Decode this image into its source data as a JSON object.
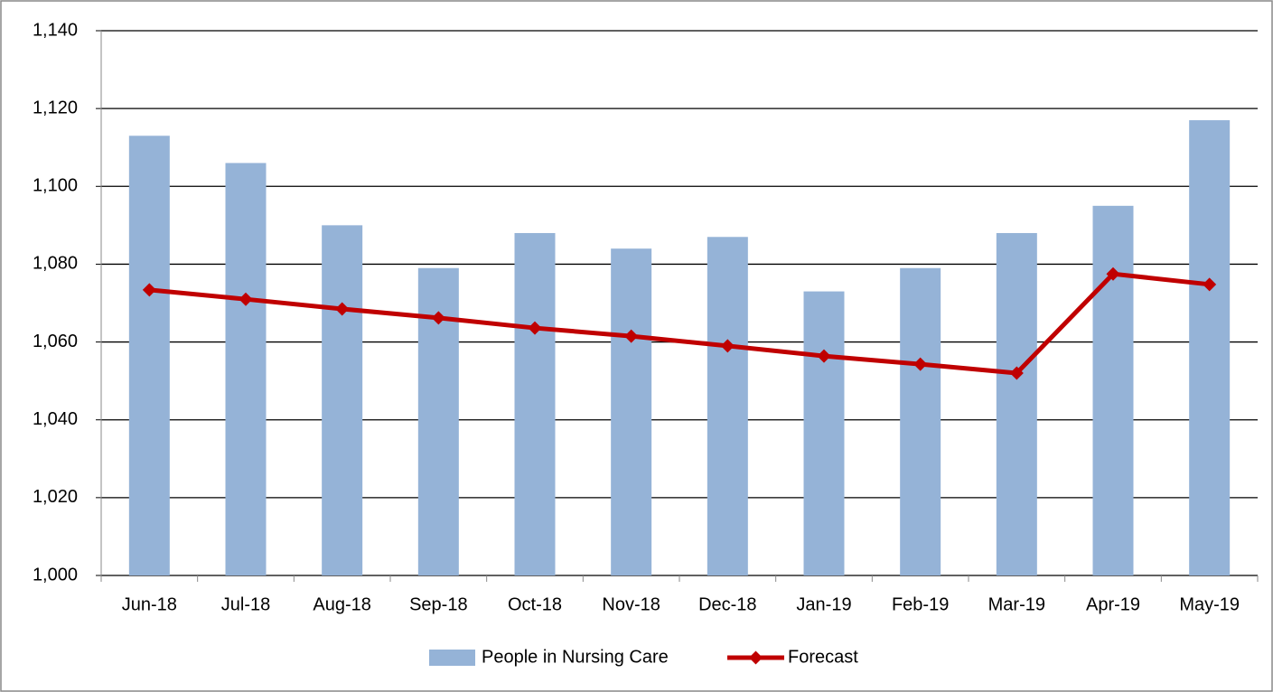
{
  "chart_data": {
    "type": "bar",
    "categories": [
      "Jun-18",
      "Jul-18",
      "Aug-18",
      "Sep-18",
      "Oct-18",
      "Nov-18",
      "Dec-18",
      "Jan-19",
      "Feb-19",
      "Mar-19",
      "Apr-19",
      "May-19"
    ],
    "series": [
      {
        "name": "People in Nursing Care",
        "type": "bar",
        "color": "#95b3d7",
        "values": [
          1113,
          1106,
          1090,
          1079,
          1088,
          1084,
          1087,
          1073,
          1079,
          1088,
          1095,
          1117
        ]
      },
      {
        "name": "Forecast",
        "type": "line",
        "color": "#c00000",
        "values": [
          1073.4,
          1071.0,
          1068.5,
          1066.2,
          1063.6,
          1061.5,
          1059.0,
          1056.4,
          1054.3,
          1052.0,
          1077.5,
          1074.8
        ]
      }
    ],
    "ylim": [
      1000,
      1140
    ],
    "yticks": [
      {
        "value": 1000,
        "label": "1,000"
      },
      {
        "value": 1020,
        "label": "1,020"
      },
      {
        "value": 1040,
        "label": "1,040"
      },
      {
        "value": 1060,
        "label": "1,060"
      },
      {
        "value": 1080,
        "label": "1,080"
      },
      {
        "value": 1100,
        "label": "1,100"
      },
      {
        "value": 1120,
        "label": "1,120"
      },
      {
        "value": 1140,
        "label": "1,140"
      }
    ],
    "grid": true,
    "legend": "bottom"
  }
}
